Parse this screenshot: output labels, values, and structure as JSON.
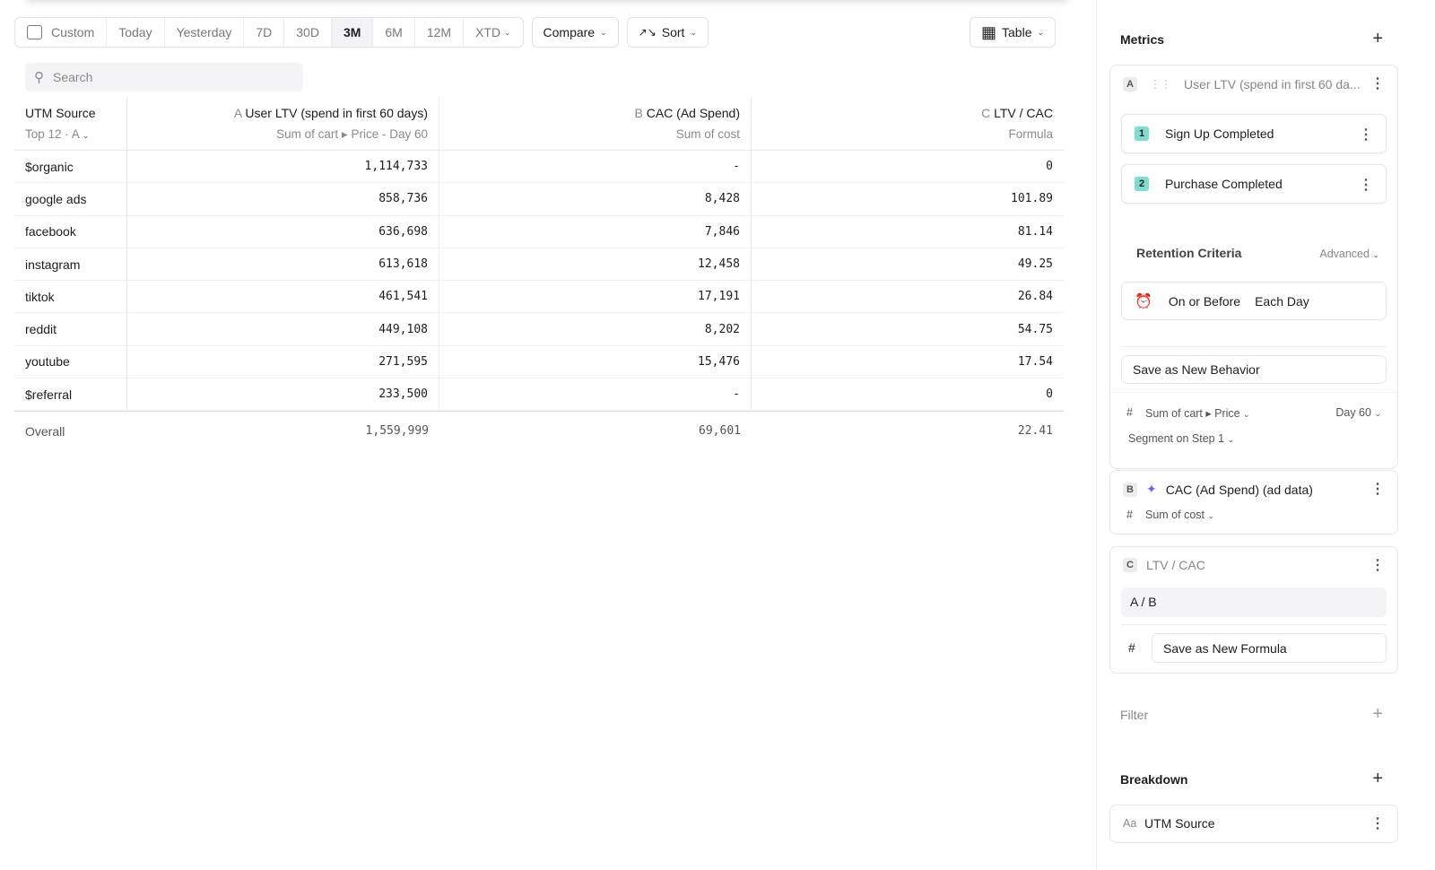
{
  "toolbar": {
    "date_ranges": [
      "Custom",
      "Today",
      "Yesterday",
      "7D",
      "30D",
      "3M",
      "6M",
      "12M",
      "XTD"
    ],
    "active_range": "3M",
    "compare": "Compare",
    "sort": "Sort",
    "view": "Table"
  },
  "search": {
    "placeholder": "Search"
  },
  "table": {
    "col0": {
      "title": "UTM Source",
      "sub": "Top 12 · A"
    },
    "columns": [
      {
        "letter": "A",
        "title": "User LTV (spend in first 60 days)",
        "sub": "Sum of cart ▸ Price - Day 60"
      },
      {
        "letter": "B",
        "title": "CAC (Ad Spend)",
        "sub": "Sum of cost"
      },
      {
        "letter": "C",
        "title": "LTV / CAC",
        "sub": "Formula"
      }
    ],
    "rows": [
      [
        "$organic",
        "1,114,733",
        "-",
        "0"
      ],
      [
        "google ads",
        "858,736",
        "8,428",
        "101.89"
      ],
      [
        "facebook",
        "636,698",
        "7,846",
        "81.14"
      ],
      [
        "instagram",
        "613,618",
        "12,458",
        "49.25"
      ],
      [
        "tiktok",
        "461,541",
        "17,191",
        "26.84"
      ],
      [
        "reddit",
        "449,108",
        "8,202",
        "54.75"
      ],
      [
        "youtube",
        "271,595",
        "15,476",
        "17.54"
      ],
      [
        "$referral",
        "233,500",
        "-",
        "0"
      ]
    ],
    "overall": [
      "Overall",
      "1,559,999",
      "69,601",
      "22.41"
    ]
  },
  "panel": {
    "metrics_title": "Metrics",
    "a": {
      "letter": "A",
      "title": "User LTV (spend in first 60 da...",
      "steps": [
        {
          "n": "1",
          "label": "Sign Up Completed"
        },
        {
          "n": "2",
          "label": "Purchase Completed"
        }
      ],
      "retention": "Retention Criteria",
      "advanced": "Advanced",
      "on_or_before": "On or Before",
      "each_day": "Each Day",
      "save": "Save as New Behavior",
      "agg": "Sum of cart ▸ Price",
      "day": "Day 60",
      "segment": "Segment on Step 1"
    },
    "b": {
      "letter": "B",
      "title": "CAC (Ad Spend) (ad data)",
      "agg": "Sum of cost"
    },
    "c": {
      "letter": "C",
      "title": "LTV / CAC",
      "formula": "A / B",
      "save": "Save as New Formula"
    },
    "filter": "Filter",
    "breakdown": "Breakdown",
    "breakdown_item": {
      "prefix": "Aa",
      "label": "UTM Source"
    }
  },
  "colors": {
    "step_badge": "#7fdccf",
    "ad_icon": "#7b5cf0"
  }
}
